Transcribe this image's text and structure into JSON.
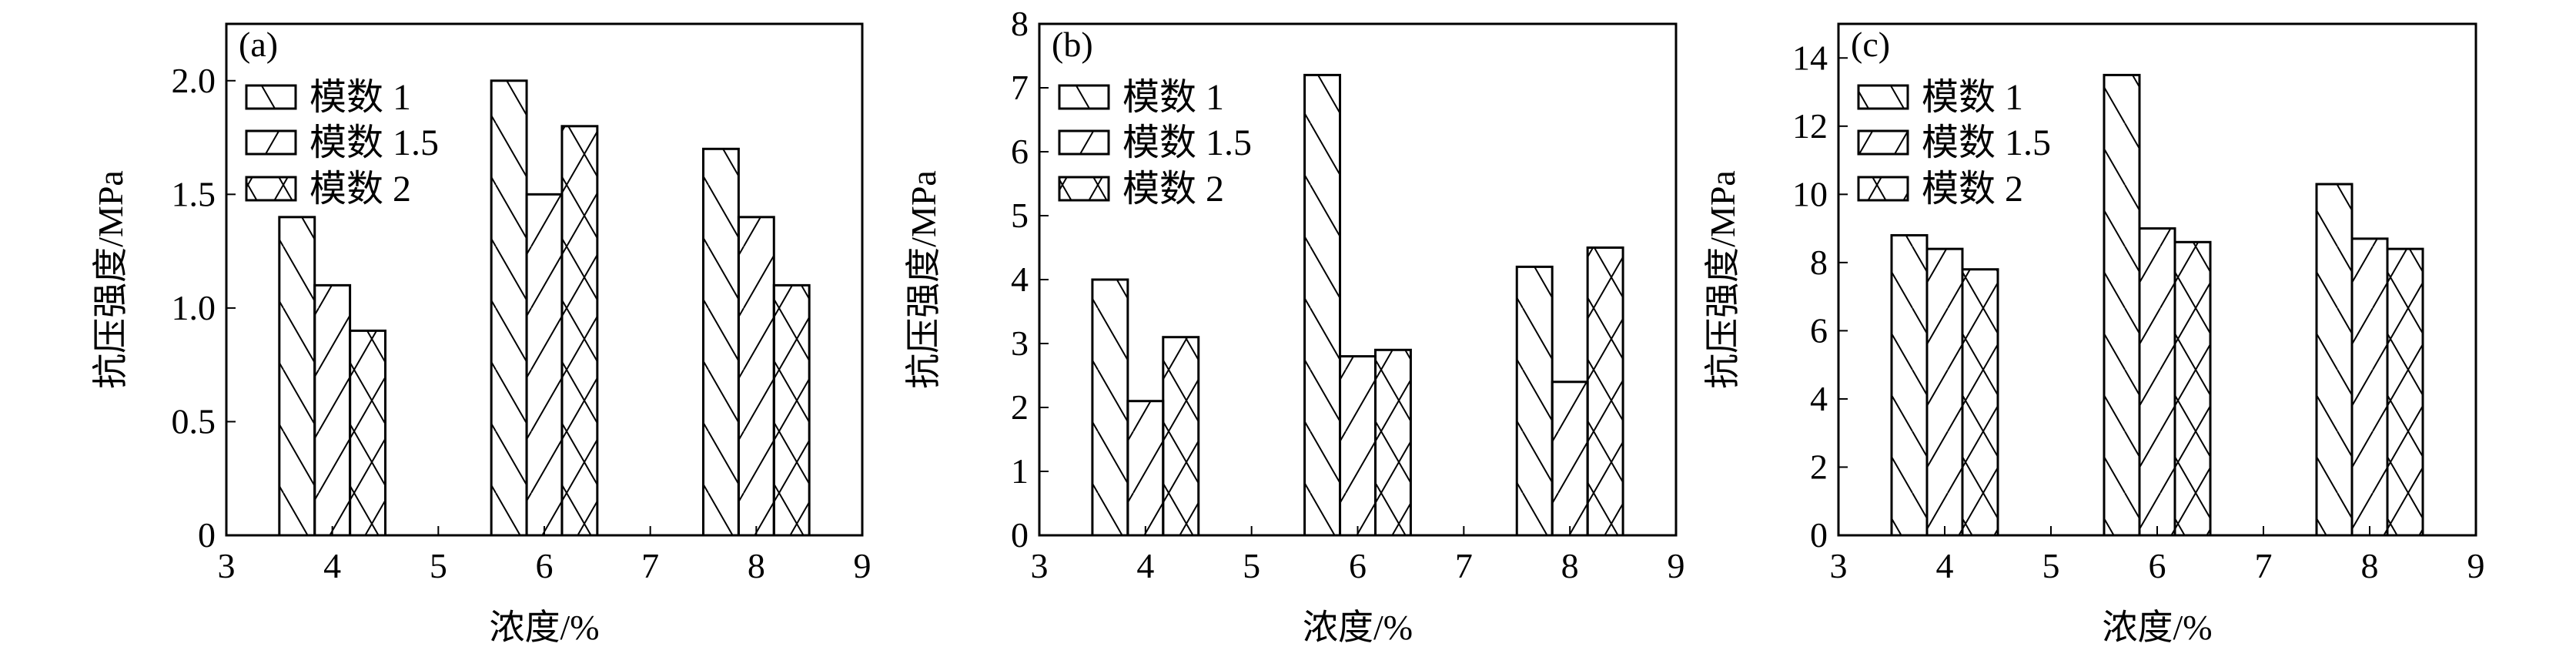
{
  "chart_data": [
    {
      "type": "bar",
      "panel_label": "(a)",
      "xlabel": "浓度/%",
      "ylabel": "抗压强度/MPa",
      "xlim": [
        3,
        9
      ],
      "ylim": [
        0,
        2.25
      ],
      "xticks": [
        3,
        4,
        5,
        6,
        7,
        8,
        9
      ],
      "yticks": [
        0,
        0.5,
        1.0,
        1.5,
        2.0
      ],
      "ytick_labels": [
        "0",
        "0.5",
        "1.0",
        "1.5",
        "2.0"
      ],
      "categories": [
        4,
        6,
        8
      ],
      "series": [
        {
          "name": "模数 1",
          "pattern": "backslash",
          "values": [
            1.4,
            2.0,
            1.7
          ]
        },
        {
          "name": "模数 1.5",
          "pattern": "slash",
          "values": [
            1.1,
            1.5,
            1.4
          ]
        },
        {
          "name": "模数 2",
          "pattern": "crosshatch",
          "values": [
            0.9,
            1.8,
            1.1
          ]
        }
      ],
      "legend": "top-left",
      "grid": false
    },
    {
      "type": "bar",
      "panel_label": "(b)",
      "xlabel": "浓度/%",
      "ylabel": "抗压强度/MPa",
      "xlim": [
        3,
        9
      ],
      "ylim": [
        0,
        8
      ],
      "xticks": [
        3,
        4,
        5,
        6,
        7,
        8,
        9
      ],
      "yticks": [
        0,
        1,
        2,
        3,
        4,
        5,
        6,
        7,
        8
      ],
      "ytick_labels": [
        "0",
        "1",
        "2",
        "3",
        "4",
        "5",
        "6",
        "7",
        "8"
      ],
      "categories": [
        4,
        6,
        8
      ],
      "series": [
        {
          "name": "模数 1",
          "pattern": "backslash",
          "values": [
            4.0,
            7.2,
            4.2
          ]
        },
        {
          "name": "模数 1.5",
          "pattern": "slash",
          "values": [
            2.1,
            2.8,
            2.4
          ]
        },
        {
          "name": "模数 2",
          "pattern": "crosshatch",
          "values": [
            3.1,
            2.9,
            4.5
          ]
        }
      ],
      "legend": "top-left",
      "grid": false
    },
    {
      "type": "bar",
      "panel_label": "(c)",
      "xlabel": "浓度/%",
      "ylabel": "抗压强度/MPa",
      "xlim": [
        3,
        9
      ],
      "ylim": [
        0,
        15
      ],
      "xticks": [
        3,
        4,
        5,
        6,
        7,
        8,
        9
      ],
      "yticks": [
        0,
        2,
        4,
        6,
        8,
        10,
        12,
        14
      ],
      "ytick_labels": [
        "0",
        "2",
        "4",
        "6",
        "8",
        "10",
        "12",
        "14"
      ],
      "categories": [
        4,
        6,
        8
      ],
      "series": [
        {
          "name": "模数 1",
          "pattern": "backslash",
          "values": [
            8.8,
            13.5,
            10.3
          ]
        },
        {
          "name": "模数 1.5",
          "pattern": "slash",
          "values": [
            8.4,
            9.0,
            8.7
          ]
        },
        {
          "name": "模数 2",
          "pattern": "crosshatch",
          "values": [
            7.8,
            8.6,
            8.4
          ]
        }
      ],
      "legend": "top-left",
      "grid": false
    }
  ]
}
